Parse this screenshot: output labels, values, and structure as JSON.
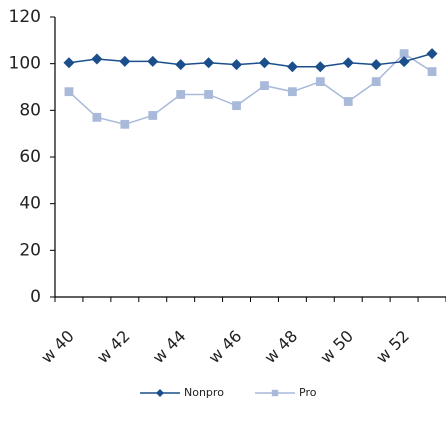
{
  "chart_data": {
    "type": "line",
    "categories": [
      "w 40",
      null,
      "w 42",
      null,
      "w 44",
      null,
      "w 46",
      null,
      "w 48",
      null,
      "w 50",
      null,
      "w 52",
      null
    ],
    "series": [
      {
        "name": "Nonpro",
        "color": "#1b4f8c",
        "marker": "diamond",
        "values": [
          100.4,
          102,
          101,
          101,
          99.6,
          100.4,
          99.6,
          100.4,
          98.7,
          98.7,
          100.4,
          99.6,
          100.9,
          104.3
        ]
      },
      {
        "name": "Pro",
        "color": "#a9b9da",
        "marker": "square",
        "values": [
          88,
          77,
          74,
          77.8,
          86.8,
          86.8,
          82,
          90.6,
          88,
          92.3,
          83.8,
          92.3,
          104.3,
          96.6
        ]
      }
    ],
    "ylim": [
      0,
      120
    ],
    "yticks": [
      0,
      20,
      40,
      60,
      80,
      100,
      120
    ],
    "grid": false,
    "legend": "bottom"
  }
}
